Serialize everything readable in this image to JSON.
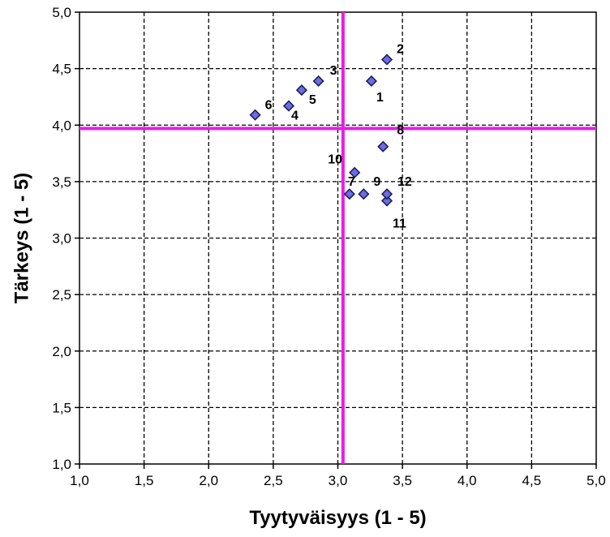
{
  "chart_data": {
    "type": "scatter",
    "title": "",
    "xlabel": "Tyytyväisyys (1 - 5)",
    "ylabel": "Tärkeys (1 - 5)",
    "xlim": [
      1.0,
      5.0
    ],
    "ylim": [
      1.0,
      5.0
    ],
    "x_ticks": [
      "1,0",
      "1,5",
      "2,0",
      "2,5",
      "3,0",
      "3,5",
      "4,0",
      "4,5",
      "5,0"
    ],
    "y_ticks": [
      "1,0",
      "1,5",
      "2,0",
      "2,5",
      "3,0",
      "3,5",
      "4,0",
      "4,5",
      "5,0"
    ],
    "grid": true,
    "reference_lines": {
      "x": 3.04,
      "y": 3.97
    },
    "colors": {
      "marker_fill": "#6c6ce0",
      "marker_stroke": "#1a1a55",
      "reference_line": "#e61ee6",
      "grid": "#000000"
    },
    "points": [
      {
        "label": "1",
        "x": 3.26,
        "y": 4.39
      },
      {
        "label": "2",
        "x": 3.38,
        "y": 4.58
      },
      {
        "label": "3",
        "x": 2.85,
        "y": 4.39
      },
      {
        "label": "4",
        "x": 2.62,
        "y": 4.17
      },
      {
        "label": "5",
        "x": 2.72,
        "y": 4.31
      },
      {
        "label": "6",
        "x": 2.36,
        "y": 4.09
      },
      {
        "label": "7",
        "x": 3.09,
        "y": 3.39
      },
      {
        "label": "8",
        "x": 3.35,
        "y": 3.81
      },
      {
        "label": "9",
        "x": 3.2,
        "y": 3.39
      },
      {
        "label": "10",
        "x": 3.13,
        "y": 3.58
      },
      {
        "label": "11",
        "x": 3.38,
        "y": 3.33
      },
      {
        "label": "12",
        "x": 3.38,
        "y": 3.39
      }
    ]
  }
}
